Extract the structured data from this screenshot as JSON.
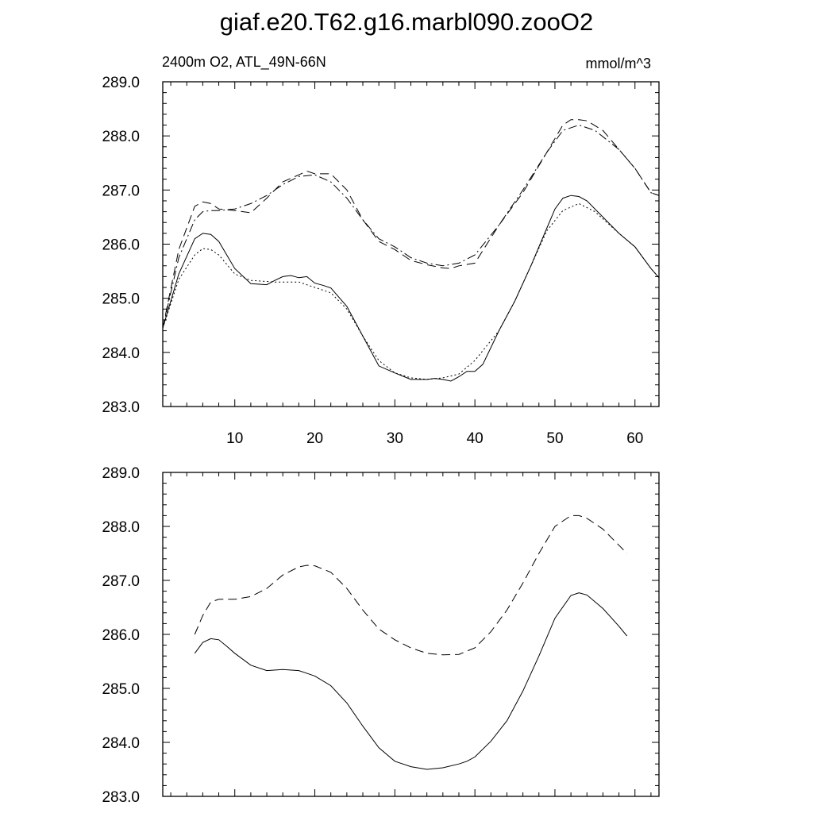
{
  "title": "giaf.e20.T62.g16.marbl090.zooO2",
  "colors": {
    "line": "#000000",
    "background": "#ffffff"
  },
  "chart_data": [
    {
      "type": "line",
      "left_label": "2400m O2, ATL_49N-66N",
      "right_label": "mmol/m^3",
      "xlim": [
        1,
        63
      ],
      "ylim": [
        283.0,
        289.0
      ],
      "x_ticks": [
        10,
        20,
        30,
        40,
        50,
        60
      ],
      "x_tick_labels": [
        "10",
        "20",
        "30",
        "40",
        "50",
        "60"
      ],
      "y_ticks": [
        283.0,
        284.0,
        285.0,
        286.0,
        287.0,
        288.0,
        289.0
      ],
      "y_tick_labels": [
        "283.0",
        "284.0",
        "285.0",
        "286.0",
        "287.0",
        "288.0",
        "289.0"
      ],
      "series": [
        {
          "style": "solid",
          "x": [
            1,
            3,
            5,
            6,
            7,
            8,
            9,
            10,
            12,
            14,
            15,
            16,
            17,
            18,
            19,
            20,
            21,
            22,
            24,
            26,
            28,
            30,
            32,
            34,
            35,
            36,
            37,
            38,
            39,
            40,
            41,
            43,
            45,
            47,
            49,
            50,
            51,
            52,
            53,
            54,
            56,
            58,
            60,
            62,
            63
          ],
          "values": [
            284.45,
            285.45,
            286.1,
            286.2,
            286.18,
            286.05,
            285.8,
            285.55,
            285.27,
            285.25,
            285.33,
            285.4,
            285.42,
            285.38,
            285.4,
            285.28,
            285.24,
            285.19,
            284.85,
            284.3,
            283.75,
            283.62,
            283.5,
            283.5,
            283.52,
            283.5,
            283.47,
            283.55,
            283.65,
            283.65,
            283.78,
            284.4,
            284.95,
            285.6,
            286.3,
            286.65,
            286.85,
            286.9,
            286.88,
            286.8,
            286.5,
            286.2,
            285.95,
            285.55,
            285.38
          ]
        },
        {
          "style": "dotted",
          "x": [
            1,
            3,
            5,
            6,
            7,
            8,
            10,
            12,
            15,
            18,
            20,
            22,
            24,
            26,
            28,
            30,
            32,
            34,
            36,
            38,
            40,
            43,
            45,
            47,
            49,
            51,
            53,
            55,
            58,
            60,
            62,
            63
          ],
          "values": [
            284.45,
            285.35,
            285.8,
            285.92,
            285.9,
            285.8,
            285.45,
            285.33,
            285.3,
            285.3,
            285.2,
            285.1,
            284.8,
            284.3,
            283.85,
            283.62,
            283.53,
            283.5,
            283.53,
            283.6,
            283.85,
            284.4,
            284.95,
            285.6,
            286.25,
            286.62,
            286.75,
            286.6,
            286.2,
            285.95,
            285.55,
            285.38
          ]
        },
        {
          "style": "dashed",
          "x": [
            1,
            3,
            5,
            6,
            7,
            8,
            10,
            12,
            14,
            16,
            18,
            19,
            20,
            22,
            24,
            26,
            28,
            30,
            32,
            34,
            36,
            37,
            38,
            40,
            43,
            46,
            49,
            51,
            52,
            53,
            54,
            56,
            58,
            60,
            62,
            63
          ],
          "values": [
            284.45,
            285.9,
            286.7,
            286.78,
            286.75,
            286.65,
            286.62,
            286.58,
            286.85,
            287.15,
            287.28,
            287.35,
            287.3,
            287.3,
            287.0,
            286.45,
            286.05,
            285.9,
            285.7,
            285.62,
            285.56,
            285.55,
            285.6,
            285.65,
            286.35,
            286.95,
            287.7,
            288.2,
            288.3,
            288.3,
            288.28,
            288.1,
            287.75,
            287.4,
            286.95,
            286.9
          ]
        },
        {
          "style": "dashdot",
          "x": [
            1,
            3,
            5,
            6,
            7,
            8,
            10,
            12,
            14,
            16,
            18,
            20,
            22,
            24,
            26,
            28,
            30,
            32,
            34,
            36,
            38,
            40,
            43,
            46,
            49,
            51,
            53,
            55,
            58,
            60,
            62,
            63
          ],
          "values": [
            284.45,
            285.75,
            286.45,
            286.6,
            286.62,
            286.62,
            286.65,
            286.75,
            286.9,
            287.1,
            287.25,
            287.28,
            287.15,
            286.85,
            286.45,
            286.1,
            285.95,
            285.75,
            285.65,
            285.6,
            285.65,
            285.8,
            286.35,
            287.0,
            287.7,
            288.1,
            288.2,
            288.1,
            287.75,
            287.4,
            286.95,
            286.9
          ]
        }
      ]
    },
    {
      "type": "line",
      "xlim": [
        1,
        63
      ],
      "ylim": [
        283.0,
        289.0
      ],
      "x_ticks": [
        10,
        20,
        30,
        40,
        50,
        60
      ],
      "y_ticks": [
        283.0,
        284.0,
        285.0,
        286.0,
        287.0,
        288.0,
        289.0
      ],
      "y_tick_labels": [
        "283.0",
        "284.0",
        "285.0",
        "286.0",
        "287.0",
        "288.0",
        "289.0"
      ],
      "series": [
        {
          "style": "solid",
          "x": [
            5,
            6,
            7,
            8,
            9,
            10,
            12,
            14,
            16,
            18,
            20,
            22,
            24,
            26,
            28,
            30,
            32,
            34,
            36,
            38,
            39,
            40,
            42,
            44,
            46,
            48,
            50,
            52,
            53,
            54,
            56,
            58,
            59
          ],
          "values": [
            285.65,
            285.85,
            285.92,
            285.9,
            285.78,
            285.65,
            285.43,
            285.33,
            285.35,
            285.33,
            285.23,
            285.05,
            284.73,
            284.3,
            283.9,
            283.65,
            283.55,
            283.5,
            283.53,
            283.6,
            283.65,
            283.73,
            284.02,
            284.4,
            284.95,
            285.6,
            286.3,
            286.72,
            286.77,
            286.73,
            286.48,
            286.15,
            285.97
          ]
        },
        {
          "style": "dashed",
          "x": [
            5,
            6,
            7,
            8,
            10,
            12,
            14,
            16,
            18,
            19,
            20,
            22,
            24,
            26,
            28,
            30,
            32,
            34,
            36,
            38,
            40,
            42,
            44,
            46,
            48,
            50,
            52,
            53,
            54,
            56,
            58,
            59
          ],
          "values": [
            286.0,
            286.35,
            286.6,
            286.65,
            286.65,
            286.7,
            286.85,
            287.1,
            287.25,
            287.28,
            287.27,
            287.15,
            286.85,
            286.45,
            286.1,
            285.9,
            285.75,
            285.65,
            285.62,
            285.63,
            285.75,
            286.05,
            286.45,
            286.95,
            287.5,
            288.0,
            288.2,
            288.2,
            288.15,
            287.95,
            287.65,
            287.5
          ]
        }
      ]
    }
  ]
}
